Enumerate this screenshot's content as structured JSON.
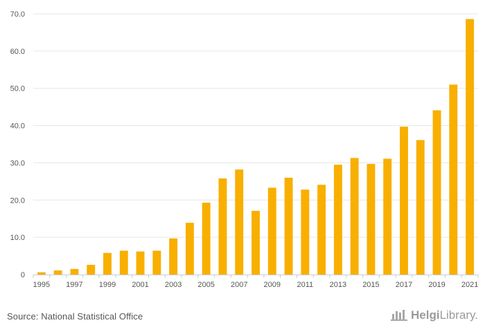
{
  "chart_data": {
    "type": "bar",
    "title": "",
    "xlabel": "",
    "ylabel": "",
    "ylim": [
      0,
      70
    ],
    "y_ticks": [
      "0",
      "10.0",
      "20.0",
      "30.0",
      "40.0",
      "50.0",
      "60.0",
      "70.0"
    ],
    "categories": [
      "1995",
      "1996",
      "1997",
      "1998",
      "1999",
      "2000",
      "2001",
      "2002",
      "2003",
      "2004",
      "2005",
      "2006",
      "2007",
      "2008",
      "2009",
      "2010",
      "2011",
      "2012",
      "2013",
      "2014",
      "2015",
      "2016",
      "2017",
      "2018",
      "2019",
      "2020",
      "2021"
    ],
    "x_tick_labels": [
      "1995",
      "1997",
      "1999",
      "2001",
      "2003",
      "2005",
      "2007",
      "2009",
      "2011",
      "2013",
      "2015",
      "2017",
      "2019",
      "2021"
    ],
    "values": [
      0.6,
      1.1,
      1.5,
      2.6,
      5.8,
      6.4,
      6.2,
      6.4,
      9.7,
      13.9,
      19.3,
      25.8,
      28.2,
      17.1,
      23.3,
      26.0,
      22.8,
      24.1,
      29.5,
      31.3,
      29.7,
      31.1,
      39.7,
      36.1,
      44.1,
      51.0,
      68.6
    ],
    "grid": true,
    "bar_color": "#F8AF00"
  },
  "footer": {
    "source": "Source: National Statistical Office",
    "brand_logo": "helgi-library-logo-icon",
    "brand_bold": "Helgi",
    "brand_light": "Library."
  }
}
